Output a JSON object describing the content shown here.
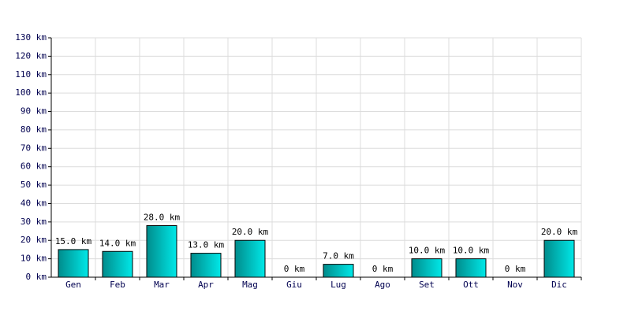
{
  "chart_data": {
    "type": "bar",
    "categories": [
      "Gen",
      "Feb",
      "Mar",
      "Apr",
      "Mag",
      "Giu",
      "Lug",
      "Ago",
      "Set",
      "Ott",
      "Nov",
      "Dic"
    ],
    "values": [
      15,
      14,
      28,
      13,
      20,
      0,
      7,
      0,
      10,
      10,
      0,
      20
    ],
    "value_labels": [
      "15.0 km",
      "14.0 km",
      "28.0 km",
      "13.0 km",
      "20.0 km",
      "0 km",
      "7.0 km",
      "0 km",
      "10.0 km",
      "10.0 km",
      "0 km",
      "20.0 km"
    ],
    "color": "#00e8e8",
    "gradient_from": "#008c8c",
    "ylim": [
      0,
      130
    ],
    "yticks": [
      {
        "value": 0,
        "label": "0 km"
      },
      {
        "value": 10,
        "label": "10 km"
      },
      {
        "value": 20,
        "label": "20 km"
      },
      {
        "value": 30,
        "label": "30 km"
      },
      {
        "value": 40,
        "label": "40 km"
      },
      {
        "value": 50,
        "label": "50 km"
      },
      {
        "value": 60,
        "label": "60 km"
      },
      {
        "value": 70,
        "label": "70 km"
      },
      {
        "value": 80,
        "label": "80 km"
      },
      {
        "value": 90,
        "label": "90 km"
      },
      {
        "value": 100,
        "label": "100 km"
      },
      {
        "value": 110,
        "label": "110 km"
      },
      {
        "value": 120,
        "label": "120 km"
      },
      {
        "value": 130,
        "label": "130 km"
      }
    ],
    "grid": true
  }
}
